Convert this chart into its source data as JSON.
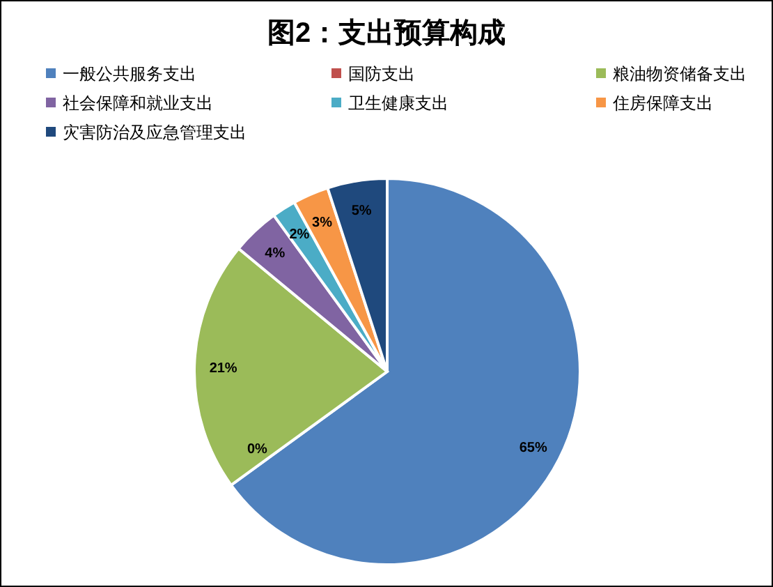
{
  "chart_data": {
    "type": "pie",
    "title": "图2：支出预算构成",
    "categories": [
      "一般公共服务支出",
      "国防支出",
      "粮油物资储备支出",
      "社会保障和就业支出",
      "卫生健康支出",
      "住房保障支出",
      "灾害防治及应急管理支出"
    ],
    "values": [
      65,
      0,
      21,
      4,
      2,
      3,
      5
    ],
    "colors": [
      "#4f81bd",
      "#c0504d",
      "#9bbb59",
      "#8064a2",
      "#4bacc6",
      "#f79646",
      "#1f497d"
    ],
    "value_labels": [
      "65%",
      "0%",
      "21%",
      "4%",
      "2%",
      "3%",
      "5%"
    ],
    "legend": "top"
  }
}
